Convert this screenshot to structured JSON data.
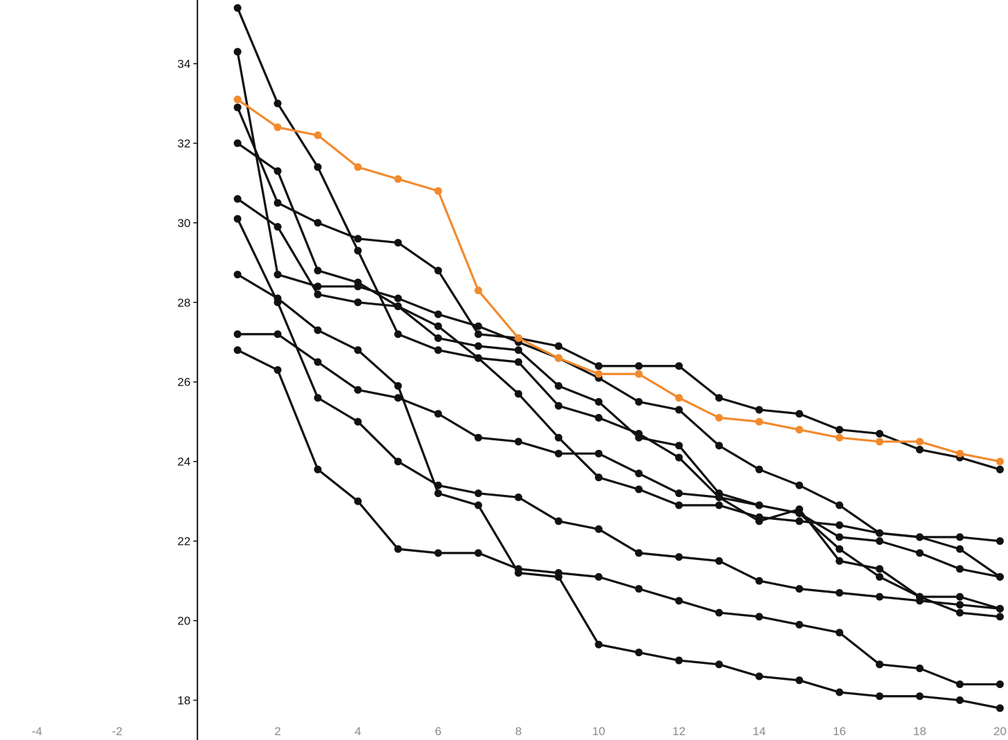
{
  "chart_data": {
    "type": "line",
    "title": "",
    "xlabel": "",
    "ylabel": "",
    "xlim": [
      -4.92,
      20.2
    ],
    "ylim": [
      17.0,
      35.6
    ],
    "grid": false,
    "legend": "none",
    "x_ticks": [
      -4,
      -2,
      2,
      4,
      6,
      8,
      10,
      12,
      14,
      16,
      18,
      20
    ],
    "y_ticks": [
      18,
      20,
      22,
      24,
      26,
      28,
      30,
      32,
      34
    ],
    "x": [
      1,
      2,
      3,
      4,
      5,
      6,
      7,
      8,
      9,
      10,
      11,
      12,
      13,
      14,
      15,
      16,
      17,
      18,
      19,
      20
    ],
    "colors": {
      "default": "#111111",
      "highlight": "#f28a2e",
      "axis": "#111111",
      "xtick": "#8a8a8a"
    },
    "series": [
      {
        "highlight": false,
        "values": [
          35.4,
          33.0,
          31.4,
          29.3,
          27.2,
          26.8,
          26.6,
          26.5,
          25.4,
          25.1,
          24.7,
          24.1,
          23.1,
          22.5,
          22.8,
          21.5,
          21.3,
          20.6,
          20.6,
          20.3
        ]
      },
      {
        "highlight": false,
        "values": [
          34.3,
          28.7,
          28.4,
          28.4,
          28.1,
          27.7,
          27.4,
          27.0,
          26.6,
          26.1,
          25.5,
          25.3,
          24.4,
          23.8,
          23.4,
          22.9,
          22.2,
          22.1,
          21.8,
          21.1
        ]
      },
      {
        "highlight": true,
        "values": [
          33.1,
          32.4,
          32.2,
          31.4,
          31.1,
          30.8,
          28.3,
          27.1,
          26.6,
          26.2,
          26.2,
          25.6,
          25.1,
          25.0,
          24.8,
          24.6,
          24.5,
          24.5,
          24.2,
          24.0
        ]
      },
      {
        "highlight": false,
        "values": [
          32.9,
          30.5,
          30.0,
          29.6,
          29.5,
          28.8,
          27.2,
          27.1,
          26.9,
          26.4,
          26.4,
          26.4,
          25.6,
          25.3,
          25.2,
          24.8,
          24.7,
          24.3,
          24.1,
          23.8
        ]
      },
      {
        "highlight": false,
        "values": [
          32.0,
          31.3,
          28.8,
          28.5,
          27.9,
          27.4,
          26.6,
          25.7,
          24.6,
          23.6,
          23.3,
          22.9,
          22.9,
          22.6,
          22.5,
          22.4,
          22.2,
          22.1,
          22.1,
          22.0
        ]
      },
      {
        "highlight": false,
        "values": [
          30.6,
          29.9,
          28.2,
          28.0,
          27.9,
          27.1,
          26.9,
          26.8,
          25.9,
          25.5,
          24.6,
          24.4,
          23.2,
          22.9,
          22.7,
          22.1,
          22.0,
          21.7,
          21.3,
          21.1
        ]
      },
      {
        "highlight": false,
        "values": [
          30.1,
          28.0,
          25.6,
          25.0,
          24.0,
          23.4,
          23.2,
          23.1,
          22.5,
          22.3,
          21.7,
          21.6,
          21.5,
          21.0,
          20.8,
          20.7,
          20.6,
          20.5,
          20.4,
          20.3
        ]
      },
      {
        "highlight": false,
        "values": [
          28.7,
          28.1,
          27.3,
          26.8,
          25.9,
          23.2,
          22.9,
          21.2,
          21.1,
          19.4,
          19.2,
          19.0,
          18.9,
          18.6,
          18.5,
          18.2,
          18.1,
          18.1,
          18.0,
          17.8
        ]
      },
      {
        "highlight": false,
        "values": [
          27.2,
          27.2,
          26.5,
          25.8,
          25.6,
          25.2,
          24.6,
          24.5,
          24.2,
          24.2,
          23.7,
          23.2,
          23.1,
          22.9,
          22.7,
          21.8,
          21.1,
          20.6,
          20.2,
          20.1
        ]
      },
      {
        "highlight": false,
        "values": [
          26.8,
          26.3,
          23.8,
          23.0,
          21.8,
          21.7,
          21.7,
          21.3,
          21.2,
          21.1,
          20.8,
          20.5,
          20.2,
          20.1,
          19.9,
          19.7,
          18.9,
          18.8,
          18.4,
          18.4
        ]
      }
    ]
  }
}
